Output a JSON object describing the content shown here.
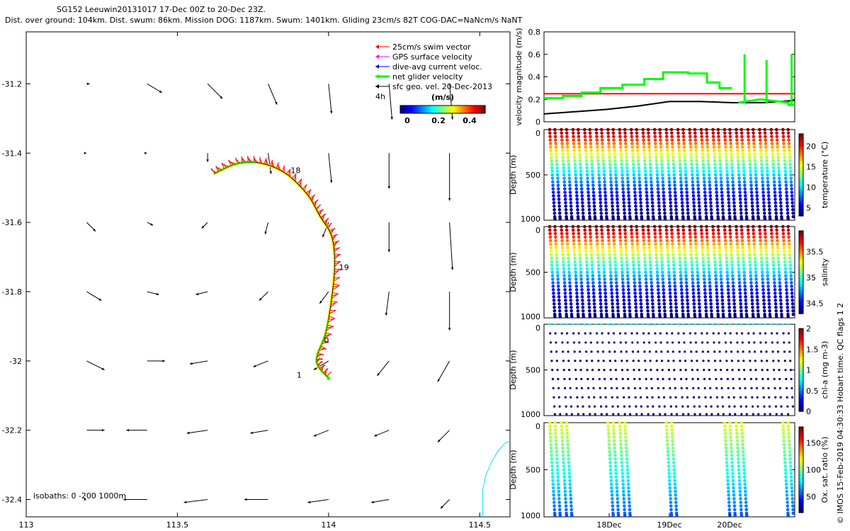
{
  "header": {
    "line1": "SG152 Leeuwin20131017 17-Dec 00Z to 20-Dec 23Z.",
    "line2": "Dist. over ground: 104km. Dist. swum: 86km. Mission DOG: 1187km. Swum: 1401km. Gliding 23cm/s 82T COG-DAC=NaNcm/s NaNT"
  },
  "footer_vertical": "© IMOS 15-Feb-2019 04:30:33 Hobart time. QC flags 1  2",
  "chart_data": [
    {
      "type": "scatter",
      "id": "track_map",
      "xlim": [
        113,
        114.6
      ],
      "ylim": [
        -32.45,
        -31.05
      ],
      "xticks": [
        "113",
        "113.5",
        "114",
        "114.5"
      ],
      "yticks": [
        "-31.2",
        "-31.4",
        "-31.6",
        "-31.8",
        "-32",
        "-32.2",
        "-32.4"
      ],
      "legend": [
        {
          "label": "25cm/s swim vector",
          "color": "#ff0000"
        },
        {
          "label": "GPS surface velocity",
          "color": "#ff00ff"
        },
        {
          "label": "dive-avg current veloc.",
          "color": "#0000ff"
        },
        {
          "label": "net glider velocity",
          "color": "#00ff00"
        },
        {
          "label": "sfc geo. vel. 20-Dec-2013",
          "color": "#000000"
        }
      ],
      "scale_label": "4h",
      "colorbar": {
        "title": "(m/s)",
        "ticks": [
          "0",
          "0.2",
          "0.4"
        ]
      },
      "isobaths_label": "isobaths: 0  -200  1000m",
      "track_day_labels": [
        "18",
        "19",
        "0",
        "1"
      ],
      "track": [
        [
          114.0,
          -32.05
        ],
        [
          113.96,
          -32.0
        ],
        [
          113.99,
          -31.92
        ],
        [
          114.01,
          -31.82
        ],
        [
          114.02,
          -31.72
        ],
        [
          114.01,
          -31.64
        ],
        [
          113.97,
          -31.58
        ],
        [
          113.93,
          -31.52
        ],
        [
          113.86,
          -31.46
        ],
        [
          113.78,
          -31.43
        ],
        [
          113.7,
          -31.43
        ],
        [
          113.62,
          -31.46
        ]
      ],
      "geo_vectors": [
        {
          "lon": 113.2,
          "lat": -31.2,
          "u": 0.01,
          "v": 0.0
        },
        {
          "lon": 113.4,
          "lat": -31.2,
          "u": 0.05,
          "v": -0.03
        },
        {
          "lon": 113.6,
          "lat": -31.2,
          "u": 0.05,
          "v": -0.05
        },
        {
          "lon": 113.8,
          "lat": -31.2,
          "u": 0.03,
          "v": -0.07
        },
        {
          "lon": 114.0,
          "lat": -31.2,
          "u": 0.01,
          "v": -0.1
        },
        {
          "lon": 114.2,
          "lat": -31.2,
          "u": 0.01,
          "v": -0.12
        },
        {
          "lon": 114.4,
          "lat": -31.2,
          "u": 0.01,
          "v": -0.12
        },
        {
          "lon": 113.2,
          "lat": -31.4,
          "u": 0.0,
          "v": 0.0
        },
        {
          "lon": 113.4,
          "lat": -31.4,
          "u": 0.0,
          "v": 0.0
        },
        {
          "lon": 113.6,
          "lat": -31.4,
          "u": 0.0,
          "v": -0.03
        },
        {
          "lon": 113.8,
          "lat": -31.4,
          "u": 0.01,
          "v": -0.07
        },
        {
          "lon": 114.0,
          "lat": -31.4,
          "u": 0.01,
          "v": -0.1
        },
        {
          "lon": 114.2,
          "lat": -31.4,
          "u": 0.0,
          "v": -0.12
        },
        {
          "lon": 114.4,
          "lat": -31.4,
          "u": 0.0,
          "v": -0.16
        },
        {
          "lon": 113.2,
          "lat": -31.6,
          "u": 0.03,
          "v": -0.03
        },
        {
          "lon": 113.4,
          "lat": -31.6,
          "u": 0.02,
          "v": -0.01
        },
        {
          "lon": 113.6,
          "lat": -31.6,
          "u": -0.02,
          "v": -0.02
        },
        {
          "lon": 113.8,
          "lat": -31.6,
          "u": -0.01,
          "v": -0.04
        },
        {
          "lon": 114.0,
          "lat": -31.6,
          "u": -0.02,
          "v": -0.05
        },
        {
          "lon": 114.2,
          "lat": -31.6,
          "u": 0.0,
          "v": -0.1
        },
        {
          "lon": 114.4,
          "lat": -31.6,
          "u": 0.01,
          "v": -0.16
        },
        {
          "lon": 113.2,
          "lat": -31.8,
          "u": 0.05,
          "v": -0.03
        },
        {
          "lon": 113.4,
          "lat": -31.8,
          "u": 0.04,
          "v": -0.01
        },
        {
          "lon": 113.6,
          "lat": -31.8,
          "u": -0.04,
          "v": -0.01
        },
        {
          "lon": 113.8,
          "lat": -31.8,
          "u": -0.03,
          "v": -0.03
        },
        {
          "lon": 114.0,
          "lat": -31.8,
          "u": -0.03,
          "v": -0.04
        },
        {
          "lon": 114.2,
          "lat": -31.8,
          "u": -0.01,
          "v": -0.08
        },
        {
          "lon": 114.4,
          "lat": -31.8,
          "u": 0.0,
          "v": -0.13
        },
        {
          "lon": 113.2,
          "lat": -32.0,
          "u": 0.06,
          "v": -0.03
        },
        {
          "lon": 113.4,
          "lat": -32.0,
          "u": 0.06,
          "v": 0.0
        },
        {
          "lon": 113.6,
          "lat": -32.0,
          "u": -0.06,
          "v": -0.01
        },
        {
          "lon": 113.8,
          "lat": -32.0,
          "u": -0.05,
          "v": -0.02
        },
        {
          "lon": 114.0,
          "lat": -32.0,
          "u": -0.05,
          "v": -0.03
        },
        {
          "lon": 114.2,
          "lat": -32.0,
          "u": -0.04,
          "v": -0.05
        },
        {
          "lon": 114.4,
          "lat": -32.0,
          "u": -0.04,
          "v": -0.07
        },
        {
          "lon": 113.2,
          "lat": -32.2,
          "u": 0.06,
          "v": 0.0
        },
        {
          "lon": 113.4,
          "lat": -32.2,
          "u": -0.07,
          "v": 0.0
        },
        {
          "lon": 113.6,
          "lat": -32.2,
          "u": -0.07,
          "v": -0.01
        },
        {
          "lon": 113.8,
          "lat": -32.2,
          "u": -0.06,
          "v": -0.01
        },
        {
          "lon": 114.0,
          "lat": -32.2,
          "u": -0.05,
          "v": -0.02
        },
        {
          "lon": 114.2,
          "lat": -32.2,
          "u": -0.05,
          "v": -0.02
        },
        {
          "lon": 114.4,
          "lat": -32.2,
          "u": -0.04,
          "v": -0.04
        },
        {
          "lon": 113.2,
          "lat": -32.4,
          "u": 0.0,
          "v": 0.0
        },
        {
          "lon": 113.4,
          "lat": -32.4,
          "u": -0.08,
          "v": 0.0
        },
        {
          "lon": 113.6,
          "lat": -32.4,
          "u": -0.08,
          "v": -0.01
        },
        {
          "lon": 113.8,
          "lat": -32.4,
          "u": -0.08,
          "v": 0.0
        },
        {
          "lon": 114.0,
          "lat": -32.4,
          "u": -0.07,
          "v": -0.01
        },
        {
          "lon": 114.2,
          "lat": -32.4,
          "u": -0.06,
          "v": -0.01
        },
        {
          "lon": 114.4,
          "lat": -32.4,
          "u": -0.03,
          "v": -0.03
        }
      ],
      "coastline": [
        [
          114.51,
          -32.45
        ],
        [
          114.51,
          -32.37
        ],
        [
          114.52,
          -32.33
        ],
        [
          114.54,
          -32.29
        ],
        [
          114.56,
          -32.26
        ],
        [
          114.58,
          -32.24
        ],
        [
          114.6,
          -32.23
        ]
      ]
    },
    {
      "type": "line",
      "id": "velocity_panel",
      "ylabel": "velocity magnitude (m/s)",
      "ylim": [
        0,
        0.8
      ],
      "yticks": [
        "0",
        "0.2",
        "0.4",
        "0.6",
        "0.8"
      ],
      "x_range_days": [
        17,
        21
      ],
      "series": [
        {
          "color": "#ff0000",
          "x": [
            17,
            21
          ],
          "y": [
            0.25,
            0.25
          ]
        },
        {
          "color": "#000000",
          "x": [
            17,
            17.5,
            18,
            18.5,
            19,
            19.5,
            20,
            20.5,
            21
          ],
          "y": [
            0.07,
            0.09,
            0.11,
            0.14,
            0.18,
            0.18,
            0.17,
            0.17,
            0.19
          ]
        },
        {
          "color": "#00ff00",
          "x": [
            17,
            17.3,
            17.3,
            17.6,
            17.6,
            17.9,
            17.9,
            18.25,
            18.25,
            18.6,
            18.6,
            18.9,
            18.9,
            19.3,
            19.3,
            19.6,
            19.6,
            19.8,
            19.8,
            20.0
          ],
          "y": [
            0.21,
            0.21,
            0.23,
            0.23,
            0.26,
            0.26,
            0.3,
            0.3,
            0.33,
            0.33,
            0.38,
            0.38,
            0.44,
            0.44,
            0.43,
            0.43,
            0.35,
            0.35,
            0.3,
            0.3
          ]
        },
        {
          "color": "#00ff00",
          "x": [
            20.1,
            20.1,
            20.45,
            20.45,
            20.9,
            20.9,
            21
          ],
          "y": [
            0.17,
            0.17,
            0.2,
            0.2,
            0.17,
            0.15,
            0.15
          ]
        }
      ]
    },
    {
      "type": "scatter",
      "id": "temperature_section",
      "ylabel": "Depth (m)",
      "yticks": [
        "0",
        "500",
        "1000"
      ],
      "ylim": [
        0,
        1000
      ],
      "colorbar_label": "temperature (°C)",
      "colorbar_ticks": [
        "5",
        "10",
        "15",
        "20"
      ],
      "crange": [
        3,
        23
      ],
      "n_dives": 21,
      "max_depth": 1000
    },
    {
      "type": "scatter",
      "id": "salinity_section",
      "ylabel": "Depth (m)",
      "yticks": [
        "0",
        "500",
        "1000"
      ],
      "ylim": [
        0,
        1000
      ],
      "colorbar_label": "salinity",
      "colorbar_ticks": [
        "34.5",
        "35",
        "35.5"
      ],
      "crange": [
        34.3,
        35.9
      ],
      "n_dives": 21,
      "max_depth": 1000
    },
    {
      "type": "scatter",
      "id": "chla_section",
      "ylabel": "Depth (m)",
      "yticks": [
        "0",
        "500",
        "1000"
      ],
      "ylim": [
        0,
        1000
      ],
      "colorbar_label": "chl-a (mg m-3)",
      "colorbar_ticks": [
        "0",
        "0.5",
        "1",
        "1.5",
        "2"
      ],
      "crange": [
        0,
        2
      ],
      "n_dives": 21,
      "max_depth": 1000
    },
    {
      "type": "scatter",
      "id": "oxygen_section",
      "ylabel": "Depth (m)",
      "yticks": [
        "0",
        "500",
        "1000"
      ],
      "ylim": [
        0,
        1000
      ],
      "colorbar_label": "Ox. sat. ratio (%)",
      "colorbar_ticks": [
        "50",
        "100",
        "150"
      ],
      "crange": [
        20,
        180
      ],
      "xticks": [
        "18Dec",
        "19Dec",
        "20Dec"
      ],
      "n_dives": 21,
      "max_depth": 1000
    }
  ]
}
